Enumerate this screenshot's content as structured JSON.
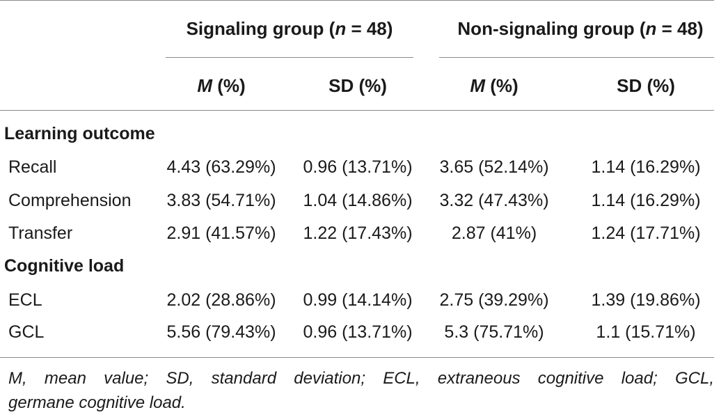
{
  "groups": {
    "signaling": {
      "prefix": "Signaling group (",
      "n": "n",
      "suffix": " = 48)"
    },
    "nonsignaling": {
      "prefix": "Non-signaling group (",
      "n": "n",
      "suffix": " = 48)"
    }
  },
  "subheaders": {
    "m_letter": "M",
    "m_unit": " (%)",
    "sd": "SD (%)"
  },
  "sections": [
    {
      "title": "Learning outcome",
      "rows": [
        {
          "label": "Recall",
          "sig_m": "4.43 (63.29%)",
          "sig_sd": "0.96 (13.71%)",
          "non_m": "3.65 (52.14%)",
          "non_sd": "1.14 (16.29%)"
        },
        {
          "label": "Comprehension",
          "sig_m": "3.83 (54.71%)",
          "sig_sd": "1.04 (14.86%)",
          "non_m": "3.32 (47.43%)",
          "non_sd": "1.14 (16.29%)"
        },
        {
          "label": "Transfer",
          "sig_m": "2.91 (41.57%)",
          "sig_sd": "1.22 (17.43%)",
          "non_m": "2.87 (41%)",
          "non_sd": "1.24 (17.71%)"
        }
      ]
    },
    {
      "title": "Cognitive load",
      "rows": [
        {
          "label": "ECL",
          "sig_m": "2.02 (28.86%)",
          "sig_sd": "0.99 (14.14%)",
          "non_m": "2.75 (39.29%)",
          "non_sd": "1.39 (19.86%)"
        },
        {
          "label": "GCL",
          "sig_m": "5.56 (79.43%)",
          "sig_sd": "0.96 (13.71%)",
          "non_m": "5.3 (75.71%)",
          "non_sd": "1.1 (15.71%)"
        }
      ]
    }
  ],
  "footnote": {
    "line1": "M, mean value; SD, standard deviation; ECL, extraneous cognitive load; GCL,",
    "line2": "germane cognitive load."
  }
}
